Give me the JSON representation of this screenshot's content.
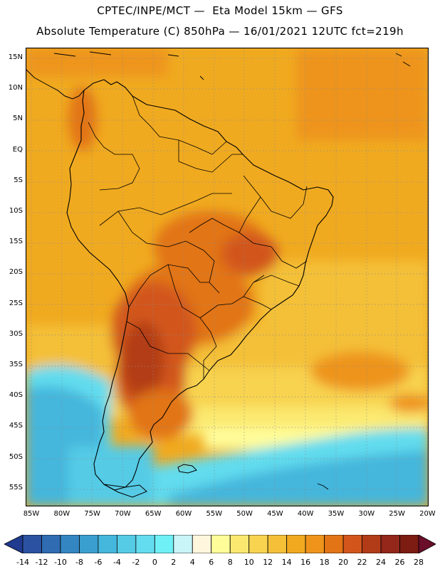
{
  "header": {
    "line1": "CPTEC/INPE/MCT —  Eta Model 15km — GFS",
    "line2": "Absolute Temperature (C) 850hPa — 16/01/2021 12UTC fct=219h"
  },
  "map": {
    "lat_labels": [
      "15N",
      "10N",
      "5N",
      "EQ",
      "5S",
      "10S",
      "15S",
      "20S",
      "25S",
      "30S",
      "35S",
      "40S",
      "45S",
      "50S",
      "55S"
    ],
    "lon_labels": [
      "85W",
      "80W",
      "75W",
      "70W",
      "65W",
      "60W",
      "55W",
      "50W",
      "45W",
      "40W",
      "35W",
      "30W",
      "25W",
      "20W"
    ]
  },
  "colorbar": {
    "labels": [
      "-14",
      "-12",
      "-10",
      "-8",
      "-6",
      "-4",
      "-2",
      "0",
      "2",
      "4",
      "6",
      "8",
      "10",
      "12",
      "14",
      "16",
      "18",
      "20",
      "22",
      "24",
      "26",
      "28"
    ],
    "colors": [
      "#1f3a8f",
      "#2a52a0",
      "#2f6cb2",
      "#3386c2",
      "#3a9fcf",
      "#45b6dc",
      "#55cbe6",
      "#62dcee",
      "#6ff0f6",
      "#c9f4f8",
      "#fff6dd",
      "#fffd9a",
      "#fbe96f",
      "#f8d350",
      "#f4c038",
      "#f0aa20",
      "#ee941a",
      "#e27415",
      "#d2561b",
      "#b33c18",
      "#92271a",
      "#7c1c12",
      "#6a0e2a"
    ]
  }
}
